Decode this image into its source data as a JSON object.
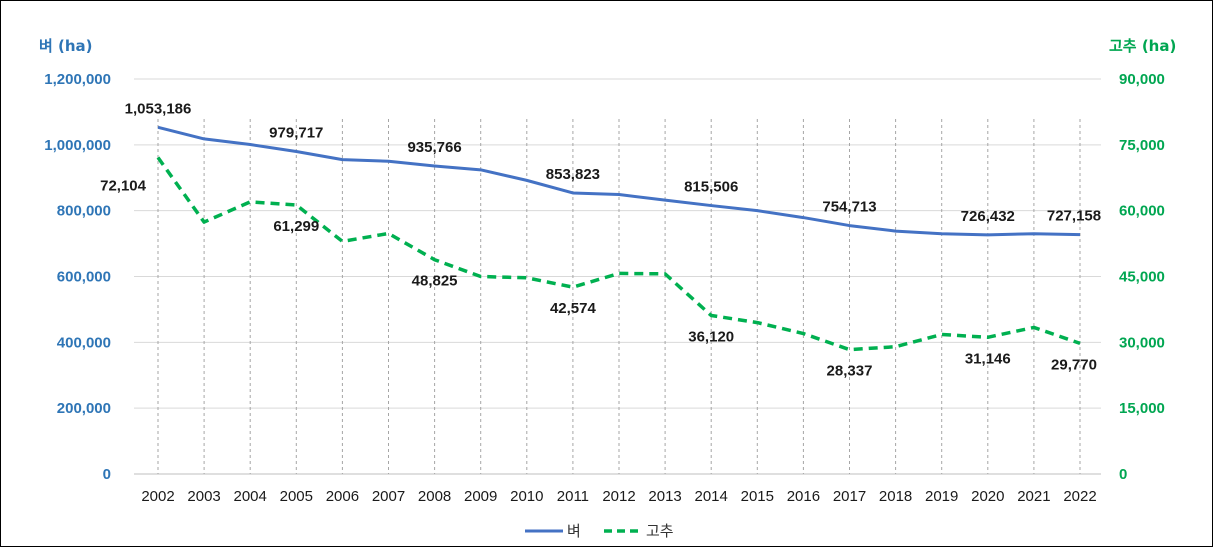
{
  "chart_data": {
    "type": "line",
    "categories": [
      "2002",
      "2003",
      "2004",
      "2005",
      "2006",
      "2007",
      "2008",
      "2009",
      "2010",
      "2011",
      "2012",
      "2013",
      "2014",
      "2015",
      "2016",
      "2017",
      "2018",
      "2019",
      "2020",
      "2021",
      "2022"
    ],
    "left_axis": {
      "title": "벼 (ha)",
      "range": [
        0,
        1200000
      ],
      "ticks": [
        "0",
        "200,000",
        "400,000",
        "600,000",
        "800,000",
        "1,000,000",
        "1,200,000"
      ],
      "color": "#2E75B6"
    },
    "right_axis": {
      "title": "고추 (ha)",
      "range": [
        0,
        90000
      ],
      "ticks": [
        "0",
        "15,000",
        "30,000",
        "45,000",
        "60,000",
        "75,000",
        "90,000"
      ],
      "color": "#00A651"
    },
    "series": [
      {
        "name": "벼",
        "axis": "left",
        "color": "#4472C4",
        "style": "solid",
        "values": [
          1053186,
          1018000,
          1001000,
          979717,
          955000,
          950000,
          935766,
          924000,
          892000,
          853823,
          849000,
          832000,
          815506,
          800000,
          779000,
          754713,
          738000,
          730000,
          726432,
          730000,
          727158
        ]
      },
      {
        "name": "고추",
        "axis": "right",
        "color": "#00B050",
        "style": "dashed",
        "values": [
          72104,
          57400,
          62000,
          61299,
          53000,
          54800,
          48825,
          45000,
          44700,
          42574,
          45700,
          45600,
          36120,
          34500,
          32000,
          28337,
          29000,
          31800,
          31146,
          33400,
          29770
        ]
      }
    ],
    "data_labels": [
      {
        "series": 0,
        "index": 0,
        "text": "1,053,186",
        "pos": "above"
      },
      {
        "series": 0,
        "index": 3,
        "text": "979,717",
        "pos": "above"
      },
      {
        "series": 0,
        "index": 6,
        "text": "935,766",
        "pos": "above"
      },
      {
        "series": 0,
        "index": 9,
        "text": "853,823",
        "pos": "above"
      },
      {
        "series": 0,
        "index": 12,
        "text": "815,506",
        "pos": "above"
      },
      {
        "series": 0,
        "index": 15,
        "text": "754,713",
        "pos": "above"
      },
      {
        "series": 0,
        "index": 18,
        "text": "726,432",
        "pos": "above"
      },
      {
        "series": 0,
        "index": 20,
        "text": "727,158",
        "pos": "above"
      },
      {
        "series": 1,
        "index": 0,
        "text": "72,104",
        "pos": "left"
      },
      {
        "series": 1,
        "index": 3,
        "text": "61,299",
        "pos": "below"
      },
      {
        "series": 1,
        "index": 6,
        "text": "48,825",
        "pos": "below"
      },
      {
        "series": 1,
        "index": 9,
        "text": "42,574",
        "pos": "below"
      },
      {
        "series": 1,
        "index": 12,
        "text": "36,120",
        "pos": "below"
      },
      {
        "series": 1,
        "index": 15,
        "text": "28,337",
        "pos": "below"
      },
      {
        "series": 1,
        "index": 18,
        "text": "31,146",
        "pos": "below"
      },
      {
        "series": 1,
        "index": 20,
        "text": "29,770",
        "pos": "below"
      }
    ],
    "grid": "horizontal + vertical dashed drop lines",
    "legend_position": "bottom-center"
  }
}
